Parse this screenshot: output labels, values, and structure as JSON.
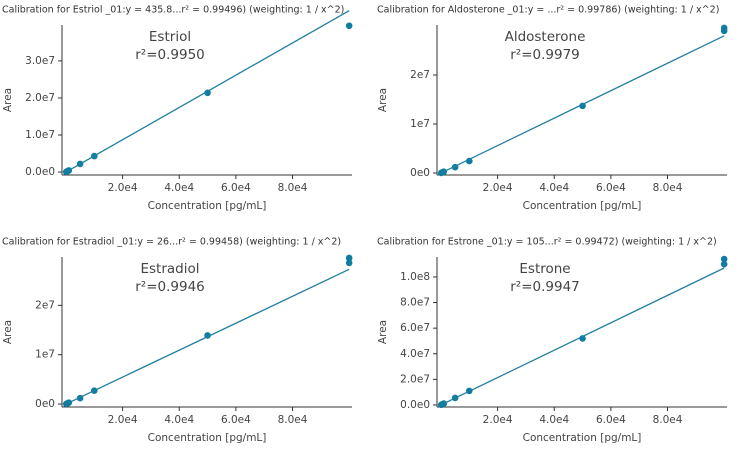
{
  "chart_data": [
    {
      "type": "scatter",
      "title": "Calibration for Estriol _01:y = 435.8...r² = 0.99496) (weighting: 1 / x^2)",
      "annotation": [
        "Estriol",
        "r²=0.9950"
      ],
      "xlabel": "Concentration [pg/mL]",
      "ylabel": "Area",
      "xlim": [
        -1400,
        101000
      ],
      "ylim": [
        -800000,
        39700000
      ],
      "xticks": [
        {
          "value": 20000,
          "label": "2.0e4"
        },
        {
          "value": 40000,
          "label": "4.0e4"
        },
        {
          "value": 60000,
          "label": "6.0e4"
        },
        {
          "value": 80000,
          "label": "8.0e4"
        }
      ],
      "yticks": [
        {
          "value": 0,
          "label": "0.0e0"
        },
        {
          "value": 10000000,
          "label": "1.0e7"
        },
        {
          "value": 20000000,
          "label": "2.0e7"
        },
        {
          "value": 30000000,
          "label": "3.0e7"
        }
      ],
      "series": [
        {
          "color": "#0f7ca0",
          "x": [
            100,
            500,
            1000,
            5000,
            10000,
            50000,
            100000
          ],
          "values": [
            43600,
            218000,
            436000,
            2200000,
            4300000,
            21400000,
            39500000
          ]
        },
        {
          "type": "line",
          "color": "#1f7fa0",
          "x": [
            0,
            100000
          ],
          "values": [
            0,
            43580000
          ]
        }
      ]
    },
    {
      "type": "scatter",
      "title": "Calibration for Aldosterone _01:y = ...r² = 0.99786) (weighting: 1 / x^2)",
      "annotation": [
        "Aldosterone",
        "r²=0.9979"
      ],
      "xlabel": "Concentration [pg/mL]",
      "ylabel": "Area",
      "xlim": [
        -1400,
        101000
      ],
      "ylim": [
        -400000,
        30200000
      ],
      "xticks": [
        {
          "value": 20000,
          "label": "2.0e4"
        },
        {
          "value": 40000,
          "label": "4.0e4"
        },
        {
          "value": 60000,
          "label": "6.0e4"
        },
        {
          "value": 80000,
          "label": "8.0e4"
        }
      ],
      "yticks": [
        {
          "value": 0,
          "label": "0e0"
        },
        {
          "value": 10000000,
          "label": "1e7"
        },
        {
          "value": 20000000,
          "label": "2e7"
        }
      ],
      "series": [
        {
          "color": "#0f7ca0",
          "x": [
            100,
            500,
            1000,
            5000,
            10000,
            50000,
            100000,
            100000
          ],
          "values": [
            28000,
            140000,
            280000,
            1200000,
            2450000,
            13700000,
            29600000,
            29000000
          ]
        },
        {
          "type": "line",
          "color": "#1f7fa0",
          "x": [
            0,
            100000
          ],
          "values": [
            0,
            28000000
          ]
        }
      ]
    },
    {
      "type": "scatter",
      "title": "Calibration for Estradiol _01:y = 26...r² = 0.99458) (weighting: 1 / x^2)",
      "annotation": [
        "Estradiol",
        "r²=0.9946"
      ],
      "xlabel": "Concentration [pg/mL]",
      "ylabel": "Area",
      "xlim": [
        -1400,
        101000
      ],
      "ylim": [
        -600000,
        29800000
      ],
      "xticks": [
        {
          "value": 20000,
          "label": "2.0e4"
        },
        {
          "value": 40000,
          "label": "4.0e4"
        },
        {
          "value": 60000,
          "label": "6.0e4"
        },
        {
          "value": 80000,
          "label": "8.0e4"
        }
      ],
      "yticks": [
        {
          "value": 0,
          "label": "0e0"
        },
        {
          "value": 10000000,
          "label": "1e7"
        },
        {
          "value": 20000000,
          "label": "2e7"
        }
      ],
      "series": [
        {
          "color": "#0f7ca0",
          "x": [
            100,
            500,
            1000,
            5000,
            10000,
            50000,
            100000,
            100000
          ],
          "values": [
            27000,
            135000,
            270000,
            1200000,
            2700000,
            13900000,
            29600000,
            28600000
          ]
        },
        {
          "type": "line",
          "color": "#1f7fa0",
          "x": [
            0,
            100000
          ],
          "values": [
            0,
            27300000
          ]
        }
      ]
    },
    {
      "type": "scatter",
      "title": "Calibration for Estrone _01:y = 105...r² = 0.99472) (weighting: 1 / x^2)",
      "annotation": [
        "Estrone",
        "r²=0.9947"
      ],
      "xlabel": "Concentration [pg/mL]",
      "ylabel": "Area",
      "xlim": [
        -1400,
        101000
      ],
      "ylim": [
        -1600000,
        115600000
      ],
      "xticks": [
        {
          "value": 20000,
          "label": "2.0e4"
        },
        {
          "value": 40000,
          "label": "4.0e4"
        },
        {
          "value": 60000,
          "label": "6.0e4"
        },
        {
          "value": 80000,
          "label": "8.0e4"
        }
      ],
      "yticks": [
        {
          "value": 0,
          "label": "0.0e0"
        },
        {
          "value": 20000000,
          "label": "2.0e7"
        },
        {
          "value": 40000000,
          "label": "4.0e7"
        },
        {
          "value": 60000000,
          "label": "6.0e7"
        },
        {
          "value": 80000000,
          "label": "8.0e7"
        },
        {
          "value": 100000000,
          "label": "1.0e8"
        }
      ],
      "series": [
        {
          "color": "#0f7ca0",
          "x": [
            100,
            500,
            1000,
            5000,
            10000,
            50000,
            100000,
            100000
          ],
          "values": [
            107000,
            535000,
            1070000,
            5500000,
            11000000,
            52000000,
            114000000,
            110000000
          ]
        },
        {
          "type": "line",
          "color": "#1f7fa0",
          "x": [
            0,
            100000
          ],
          "values": [
            0,
            107000000
          ]
        }
      ]
    }
  ]
}
